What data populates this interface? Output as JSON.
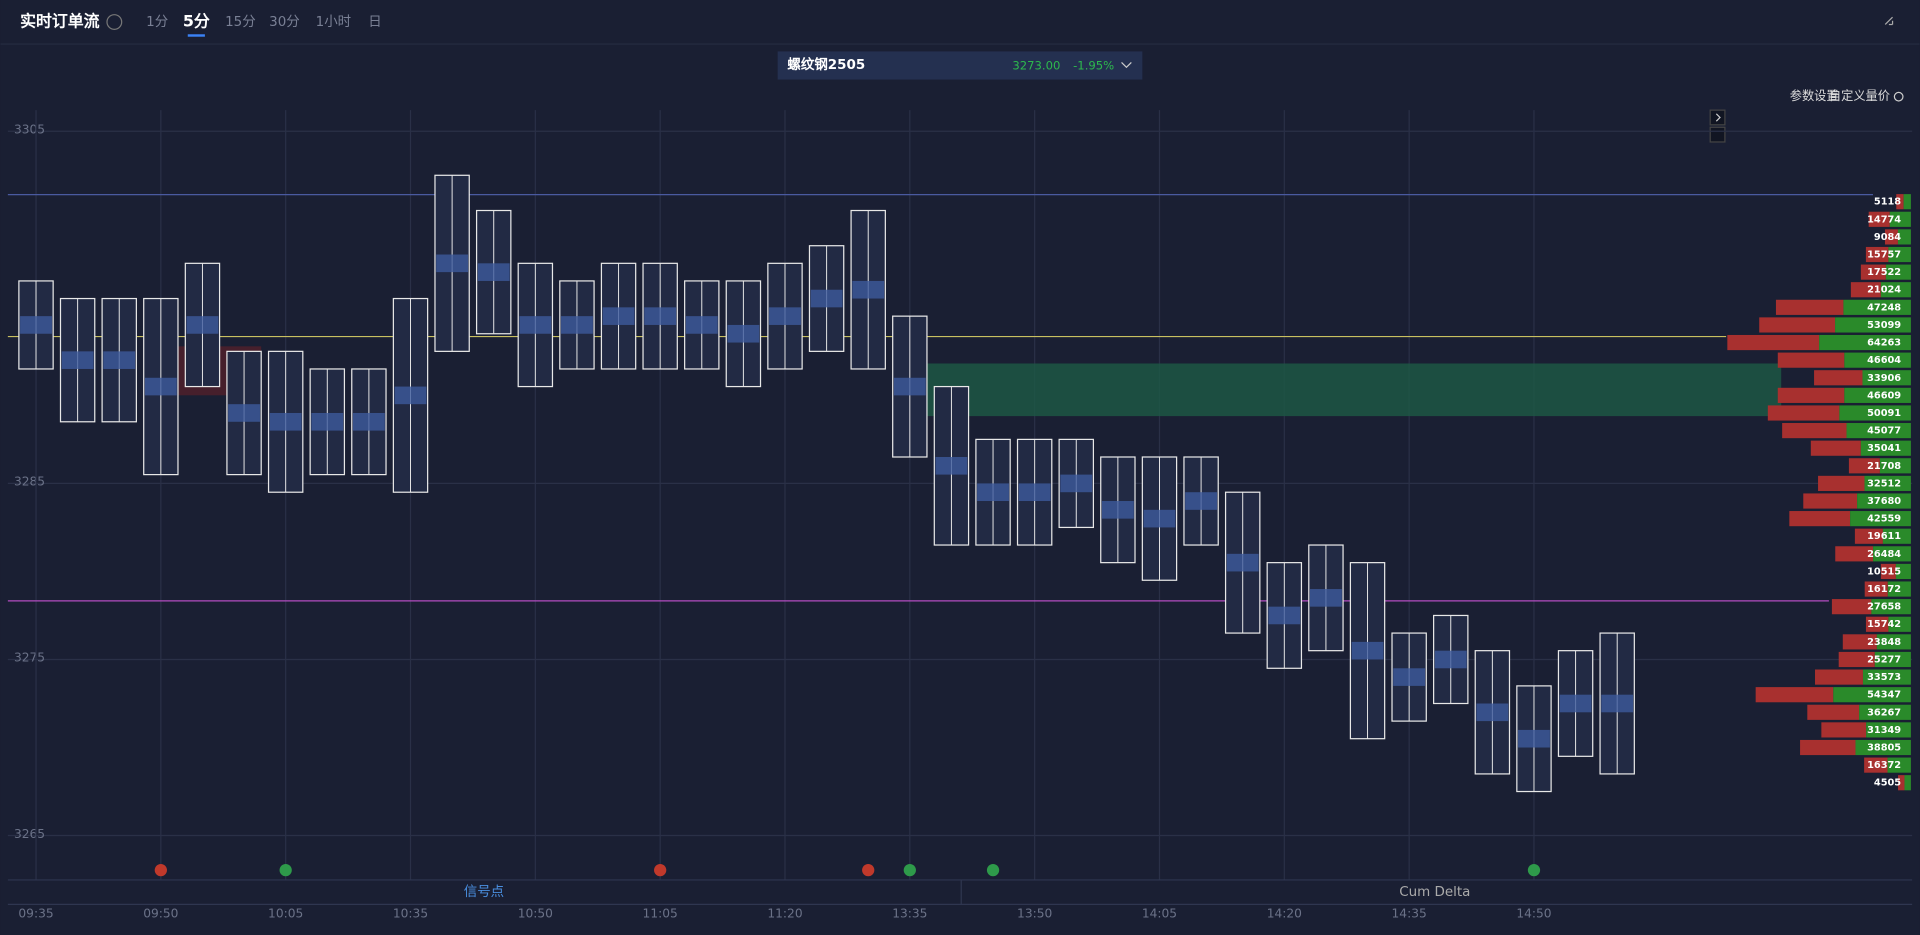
{
  "header": {
    "title": "实时订单流",
    "tabs": [
      "1分",
      "5分",
      "15分",
      "30分",
      "1小时",
      "日"
    ],
    "active_tab": 1
  },
  "instrument": {
    "name": "螺纹钢2505",
    "price": "3273.00",
    "change": "-1.95%"
  },
  "toolbar": [
    "参数设置",
    "自定义量价"
  ],
  "chart_data": {
    "type": "footprint",
    "categories": [
      "09:35",
      null,
      null,
      "09:50",
      null,
      null,
      "10:05",
      null,
      null,
      "10:35",
      null,
      null,
      "10:50",
      null,
      null,
      "11:05",
      null,
      null,
      "11:20",
      null,
      null,
      "13:35",
      null,
      null,
      "13:50",
      null,
      null,
      "14:05",
      null,
      null,
      "14:20",
      null,
      null,
      "14:35",
      null,
      null,
      "14:50",
      null,
      null
    ],
    "high": [
      3296,
      3295,
      3295,
      3295,
      3297,
      3292,
      3292,
      3291,
      3291,
      3295,
      3302,
      3300,
      3297,
      3296,
      3297,
      3297,
      3296,
      3296,
      3297,
      3298,
      3300,
      3294,
      3290,
      3287,
      3287,
      3287,
      3286,
      3286,
      3286,
      3284,
      3280,
      3281,
      3280,
      3276,
      3277,
      3275,
      3273,
      3275,
      3276
    ],
    "low": [
      3292,
      3289,
      3289,
      3286,
      3291,
      3286,
      3285,
      3286,
      3286,
      3285,
      3293,
      3294,
      3291,
      3292,
      3292,
      3292,
      3292,
      3291,
      3292,
      3293,
      3292,
      3287,
      3282,
      3282,
      3282,
      3283,
      3281,
      3280,
      3282,
      3277,
      3275,
      3276,
      3271,
      3272,
      3273,
      3269,
      3268,
      3270,
      3269
    ],
    "ylim": [
      3263.8,
      3306.2
    ],
    "yticks": [
      3265,
      3275,
      3285,
      3305
    ],
    "grid": true,
    "profile": {
      "prices": [
        3301,
        3300,
        3299,
        3298,
        3297,
        3296,
        3295,
        3294,
        3293,
        3292,
        3291,
        3290,
        3289,
        3288,
        3287,
        3286,
        3285,
        3284,
        3283,
        3282,
        3281,
        3280,
        3279,
        3278,
        3277,
        3276,
        3275,
        3274,
        3273,
        3272,
        3271,
        3270,
        3269,
        3268
      ],
      "values": [
        5118,
        14774,
        9084,
        15757,
        17522,
        21024,
        47248,
        53099,
        64263,
        46604,
        33906,
        46609,
        50091,
        45077,
        35041,
        21708,
        32512,
        37680,
        42559,
        19611,
        26484,
        10515,
        16172,
        27658,
        15742,
        23848,
        25277,
        33573,
        54347,
        36267,
        31349,
        38805,
        16372,
        4505
      ]
    }
  },
  "footer": {
    "tabs": [
      "信号点",
      "Cum Delta"
    ]
  }
}
